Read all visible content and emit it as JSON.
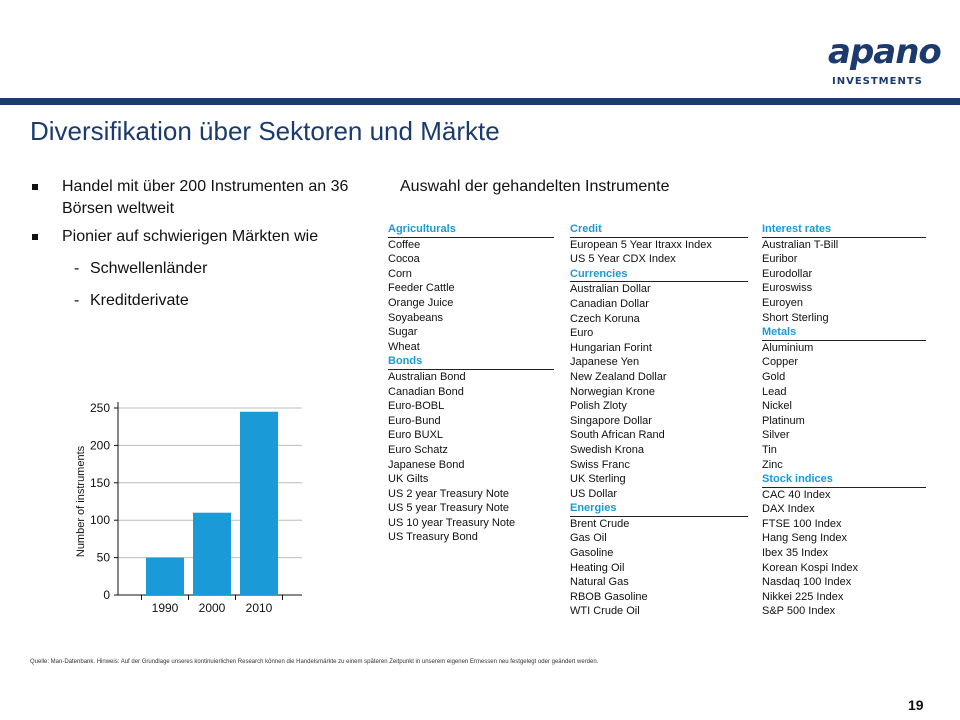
{
  "logo": {
    "word": "apano",
    "sub": "INVESTMENTS"
  },
  "title": "Diversifikation über Sektoren und Märkte",
  "bullets": [
    "Handel mit über 200 Instrumenten an 36 Börsen weltweit",
    "Pionier auf schwierigen Märkten wie"
  ],
  "sub_bullets": [
    "Schwellenländer",
    "Kreditderivate"
  ],
  "chart_data": {
    "type": "bar",
    "categories": [
      "1990",
      "2000",
      "2010"
    ],
    "values": [
      50,
      110,
      245
    ],
    "ylabel": "Number of instruments",
    "ylim": [
      0,
      250
    ],
    "yticks": [
      "0",
      "50",
      "100",
      "150",
      "200",
      "250"
    ],
    "bar_color": "#1a9ad6"
  },
  "table_heading": "Auswahl der gehandelten Instrumente",
  "columns": [
    [
      {
        "h": "Agriculturals"
      },
      {
        "t": "Coffee"
      },
      {
        "t": "Cocoa"
      },
      {
        "t": "Corn"
      },
      {
        "t": "Feeder Cattle"
      },
      {
        "t": "Orange Juice"
      },
      {
        "t": "Soyabeans"
      },
      {
        "t": "Sugar"
      },
      {
        "t": "Wheat"
      },
      {
        "h": "Bonds"
      },
      {
        "t": "Australian Bond"
      },
      {
        "t": "Canadian Bond"
      },
      {
        "t": "Euro-BOBL"
      },
      {
        "t": "Euro-Bund"
      },
      {
        "t": "Euro BUXL"
      },
      {
        "t": "Euro Schatz"
      },
      {
        "t": "Japanese Bond"
      },
      {
        "t": "UK Gilts"
      },
      {
        "t": "US 2 year Treasury Note"
      },
      {
        "t": "US 5 year Treasury Note"
      },
      {
        "t": "US 10 year Treasury Note"
      },
      {
        "t": "US Treasury Bond"
      }
    ],
    [
      {
        "h": "Credit"
      },
      {
        "t": "European 5 Year Itraxx Index"
      },
      {
        "t": "US 5 Year CDX Index"
      },
      {
        "h": "Currencies"
      },
      {
        "t": "Australian Dollar"
      },
      {
        "t": "Canadian Dollar"
      },
      {
        "t": "Czech Koruna"
      },
      {
        "t": "Euro"
      },
      {
        "t": "Hungarian Forint"
      },
      {
        "t": "Japanese Yen"
      },
      {
        "t": "New Zealand Dollar"
      },
      {
        "t": "Norwegian Krone"
      },
      {
        "t": "Polish Zloty"
      },
      {
        "t": "Singapore Dollar"
      },
      {
        "t": "South African Rand"
      },
      {
        "t": "Swedish Krona"
      },
      {
        "t": "Swiss Franc"
      },
      {
        "t": "UK Sterling"
      },
      {
        "t": "US Dollar"
      },
      {
        "h": "Energies"
      },
      {
        "t": "Brent Crude"
      },
      {
        "t": "Gas Oil"
      },
      {
        "t": "Gasoline"
      },
      {
        "t": "Heating Oil"
      },
      {
        "t": "Natural Gas"
      },
      {
        "t": "RBOB Gasoline"
      },
      {
        "t": "WTI Crude Oil"
      }
    ],
    [
      {
        "h": "Interest rates"
      },
      {
        "t": "Australian T-Bill"
      },
      {
        "t": "Euribor"
      },
      {
        "t": "Eurodollar"
      },
      {
        "t": "Euroswiss"
      },
      {
        "t": "Euroyen"
      },
      {
        "t": "Short Sterling"
      },
      {
        "h": "Metals"
      },
      {
        "t": "Aluminium"
      },
      {
        "t": "Copper"
      },
      {
        "t": "Gold"
      },
      {
        "t": "Lead"
      },
      {
        "t": "Nickel"
      },
      {
        "t": "Platinum"
      },
      {
        "t": "Silver"
      },
      {
        "t": "Tin"
      },
      {
        "t": "Zinc"
      },
      {
        "h": "Stock indices"
      },
      {
        "t": "CAC 40 Index"
      },
      {
        "t": "DAX Index"
      },
      {
        "t": "FTSE 100 Index"
      },
      {
        "t": "Hang Seng Index"
      },
      {
        "t": "Ibex 35 Index"
      },
      {
        "t": "Korean Kospi Index"
      },
      {
        "t": "Nasdaq 100 Index"
      },
      {
        "t": "Nikkei 225 Index"
      },
      {
        "t": "S&P 500 Index"
      }
    ]
  ],
  "source": "Quelle: Man-Datenbank. Hinweis: Auf der Grundlage unseres kontinuierlichen Research können die Handelsmärkte zu einem späteren Zeitpunkt in unserem eigenen Ermessen neu festgelegt oder geändert werden.",
  "page_number": "19"
}
